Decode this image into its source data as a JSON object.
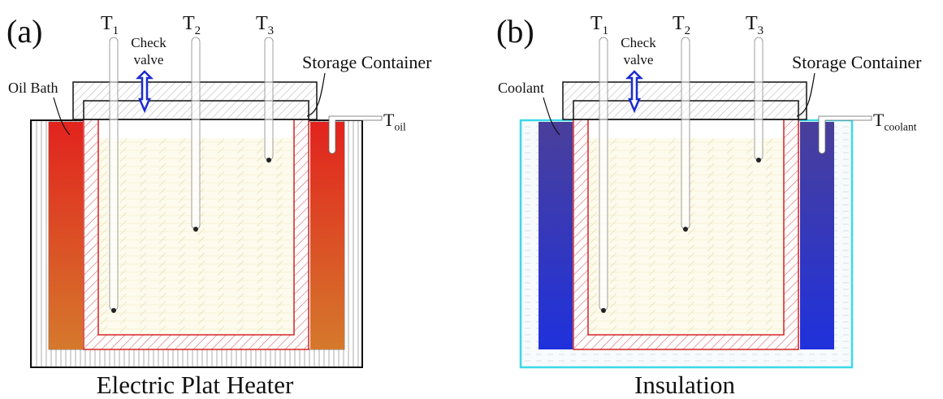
{
  "panels": [
    {
      "label": "(a)",
      "probes": [
        {
          "main": "T",
          "sub": "1"
        },
        {
          "main": "T",
          "sub": "2"
        },
        {
          "main": "T",
          "sub": "3"
        }
      ],
      "valve": [
        "Check",
        "valve"
      ],
      "container": "Storage Container",
      "bath": "Oil Bath",
      "bath_probe": {
        "main": "T",
        "sub": "oil"
      },
      "base": "Electric Plat Heater"
    },
    {
      "label": "(b)",
      "probes": [
        {
          "main": "T",
          "sub": "1"
        },
        {
          "main": "T",
          "sub": "2"
        },
        {
          "main": "T",
          "sub": "3"
        }
      ],
      "valve": [
        "Check",
        "valve"
      ],
      "container": "Storage Container",
      "bath": "Coolant",
      "bath_probe": {
        "main": "T",
        "sub": "coolant"
      },
      "base": "Insulation"
    }
  ]
}
